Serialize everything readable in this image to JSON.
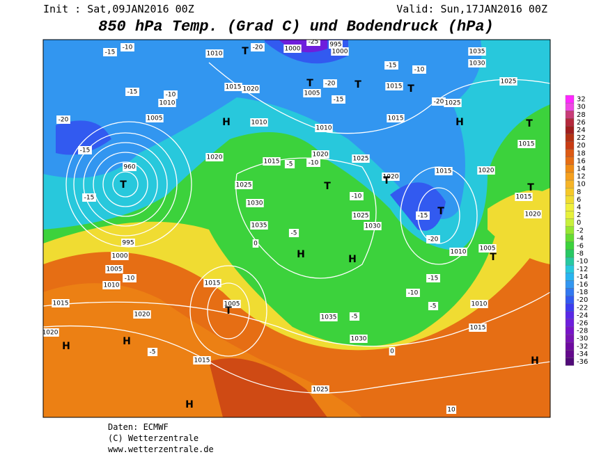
{
  "header": {
    "init": "Init : Sat,09JAN2016 00Z",
    "valid": "Valid: Sun,17JAN2016 00Z",
    "title": "850 hPa Temp. (Grad C) und Bodendruck (hPa)"
  },
  "map_labels": [
    "-10",
    "-15",
    "1010",
    "T",
    "-20",
    "1000",
    "-25",
    "995",
    "1000",
    "-15",
    "-10",
    "1035",
    "1030",
    "1025",
    "-15",
    "-10",
    "1010",
    "1015",
    "1020",
    "T",
    "1005",
    "-20",
    "T",
    "-15",
    "1015",
    "T",
    "-20",
    "1025",
    "-20",
    "1005",
    "H",
    "1010",
    "1010",
    "1015",
    "H",
    "T",
    "-15",
    "960",
    "T",
    "-15",
    "1020",
    "1015",
    "-5",
    "-10",
    "1020",
    "1025",
    "1020",
    "T",
    "1015",
    "1020",
    "1015",
    "T",
    "1025",
    "1030",
    "-10",
    "1025",
    "1030",
    "T",
    "-15",
    "T",
    "1015",
    "1020",
    "1035",
    "-5",
    "0",
    "-20",
    "1010",
    "1005",
    "T",
    "1000",
    "995",
    "-10",
    "1005",
    "1010",
    "H",
    "H",
    "-15",
    "1015",
    "1020",
    "1015",
    "1005",
    "T",
    "-5",
    "1035",
    "-10",
    "-5",
    "1010",
    "1015",
    "H",
    "H",
    "-5",
    "1015",
    "1030",
    "0",
    "1025",
    "H",
    "H",
    "10",
    "1020"
  ],
  "colorbar": {
    "values": [
      32,
      30,
      28,
      26,
      24,
      22,
      20,
      18,
      16,
      14,
      12,
      10,
      8,
      6,
      4,
      2,
      0,
      -2,
      -4,
      -6,
      -8,
      -10,
      -12,
      -14,
      -16,
      -18,
      -20,
      -22,
      -24,
      -26,
      -28,
      -30,
      -32,
      -34,
      -36
    ],
    "colors": [
      "#ff28ff",
      "#f046e6",
      "#c83c78",
      "#b4283c",
      "#a01e1e",
      "#b43214",
      "#c83c14",
      "#dc5a14",
      "#e66e14",
      "#f08c14",
      "#f5a01e",
      "#f5b428",
      "#f5c828",
      "#f0dc32",
      "#f0f03c",
      "#e6f03c",
      "#c8f03c",
      "#96e632",
      "#64dc32",
      "#3cd23c",
      "#28c864",
      "#28c8a0",
      "#28c8dc",
      "#28b4f0",
      "#3296f0",
      "#3278f0",
      "#325af0",
      "#3c3cf0",
      "#5a28e6",
      "#6e1edc",
      "#7814c8",
      "#7814b4",
      "#6e0aa0",
      "#640a8c",
      "#500a78"
    ]
  },
  "footer": {
    "source": "Daten: ECMWF",
    "copyright": "(C) Wetterzentrale",
    "url": "www.wetterzentrale.de"
  }
}
